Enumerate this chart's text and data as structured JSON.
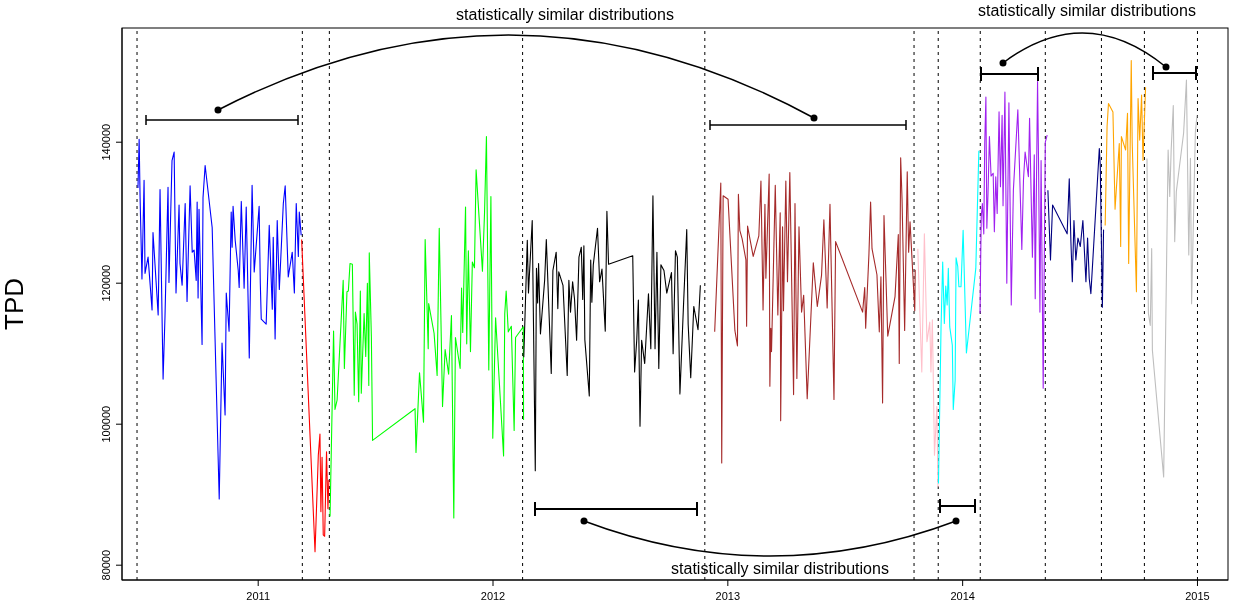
{
  "chart_data": {
    "type": "line",
    "ylabel": "TPD",
    "xlim": [
      2010.42,
      2015.13
    ],
    "xticks": [
      2011,
      2012,
      2013,
      2014,
      2015
    ],
    "ylim": [
      77900,
      156200
    ],
    "yticks": [
      80000,
      100000,
      120000,
      140000
    ],
    "annotations": [
      "statistically similar distributions",
      "statistically similar distributions",
      "statistically similar distributions"
    ],
    "ref_lines": [
      {
        "axis": "x",
        "value": 2010.484,
        "color": "#000000",
        "line_style": "dashed"
      },
      {
        "axis": "x",
        "value": 2011.188,
        "color": "#000000",
        "line_style": "dashed"
      },
      {
        "axis": "x",
        "value": 2011.303,
        "color": "#000000",
        "line_style": "dashed"
      },
      {
        "axis": "x",
        "value": 2012.126,
        "color": "#000000",
        "line_style": "dashed"
      },
      {
        "axis": "x",
        "value": 2012.902,
        "color": "#000000",
        "line_style": "dashed"
      },
      {
        "axis": "x",
        "value": 2013.793,
        "color": "#000000",
        "line_style": "dashed"
      },
      {
        "axis": "x",
        "value": 2013.896,
        "color": "#000000",
        "line_style": "dashed"
      },
      {
        "axis": "x",
        "value": 2014.075,
        "color": "#000000",
        "line_style": "dashed"
      },
      {
        "axis": "x",
        "value": 2014.352,
        "color": "#000000",
        "line_style": "dashed"
      },
      {
        "axis": "x",
        "value": 2014.591,
        "color": "#000000",
        "line_style": "dashed"
      },
      {
        "axis": "x",
        "value": 2014.774,
        "color": "#000000",
        "line_style": "dashed"
      },
      {
        "axis": "x",
        "value": 2015,
        "color": "#000000",
        "line_style": "dashed"
      }
    ],
    "series": [
      {
        "color": "#0000ff",
        "x": [
          2010.488,
          2010.493,
          2010.497,
          2010.505,
          2010.514,
          2010.518,
          2010.531,
          2010.548,
          2010.552,
          2010.574,
          2010.582,
          2010.591,
          2010.595,
          2010.603,
          2010.616,
          2010.62,
          2010.633,
          2010.642,
          2010.65,
          2010.663,
          2010.667,
          2010.676,
          2010.689,
          2010.697,
          2010.71,
          2010.719,
          2010.727,
          2010.736,
          2010.74,
          2010.744,
          2010.748,
          2010.761,
          2010.765,
          2010.774,
          2010.804,
          2010.834,
          2010.846,
          2010.859,
          2010.864,
          2010.876,
          2010.885,
          2010.889,
          2010.893,
          2010.902,
          2010.915,
          2010.919,
          2010.928,
          2010.94,
          2010.949,
          2010.962,
          2010.974,
          2010.983,
          2011.004,
          2011.009,
          2011.013,
          2011.034,
          2011.047,
          2011.06,
          2011.064,
          2011.072,
          2011.081,
          2011.09,
          2011.107,
          2011.115,
          2011.128,
          2011.145,
          2011.154,
          2011.162,
          2011.171,
          2011.175,
          2011.183
        ],
        "values": [
          133500,
          140400,
          132200,
          120600,
          134600,
          121400,
          123700,
          116200,
          127200,
          115500,
          133300,
          114300,
          106400,
          115200,
          133600,
          120100,
          137400,
          138600,
          118600,
          131100,
          122800,
          119700,
          131300,
          117400,
          133800,
          124400,
          124700,
          120400,
          131500,
          117900,
          130500,
          111300,
          132100,
          136700,
          127900,
          89400,
          111500,
          101300,
          118600,
          113200,
          130100,
          125100,
          130900,
          126100,
          121800,
          119400,
          131600,
          119300,
          130800,
          109400,
          133900,
          121600,
          130900,
          120000,
          114900,
          114200,
          128200,
          116300,
          126500,
          112100,
          128900,
          119100,
          131300,
          133800,
          120900,
          124400,
          118600,
          131300,
          123800,
          130100,
          126800
        ]
      },
      {
        "color": "#ff0000",
        "x": [
          2011.185,
          2011.242,
          2011.256,
          2011.263,
          2011.267,
          2011.272,
          2011.277,
          2011.283,
          2011.291,
          2011.297,
          2011.301
        ],
        "values": [
          126200,
          81900,
          95600,
          98600,
          87600,
          95300,
          84300,
          84100,
          96100,
          88000,
          92100
        ]
      },
      {
        "color": "#00ff00",
        "x": [
          2011.306,
          2011.321,
          2011.327,
          2011.336,
          2011.362,
          2011.367,
          2011.378,
          2011.384,
          2011.391,
          2011.401,
          2011.409,
          2011.414,
          2011.421,
          2011.428,
          2011.435,
          2011.439,
          2011.451,
          2011.458,
          2011.465,
          2011.471,
          2011.473,
          2011.482,
          2011.487,
          2011.668,
          2011.672,
          2011.687,
          2011.704,
          2011.711,
          2011.724,
          2011.726,
          2011.749,
          2011.762,
          2011.771,
          2011.785,
          2011.796,
          2011.811,
          2011.823,
          2011.833,
          2011.84,
          2011.86,
          2011.866,
          2011.871,
          2011.883,
          2011.888,
          2011.895,
          2011.904,
          2011.912,
          2011.921,
          2011.928,
          2011.955,
          2011.964,
          2011.972,
          2011.982,
          2011.991,
          2011.999,
          2012.011,
          2012.045,
          2012.05,
          2012.056,
          2012.065,
          2012.078,
          2012.09,
          2012.096,
          2012.109,
          2012.129,
          2012.13
        ],
        "values": [
          86900,
          113200,
          102100,
          103400,
          120400,
          107900,
          118800,
          118900,
          122800,
          122700,
          104100,
          115900,
          114200,
          103200,
          118900,
          104400,
          115700,
          109600,
          120000,
          105500,
          124300,
          112400,
          97700,
          102200,
          96000,
          107300,
          100300,
          126200,
          110700,
          117100,
          112900,
          106900,
          127800,
          102500,
          110600,
          107100,
          115400,
          86700,
          112300,
          107900,
          119300,
          113000,
          130800,
          111400,
          124600,
          110300,
          123000,
          122200,
          136100,
          121700,
          130100,
          140800,
          107700,
          132300,
          98000,
          115100,
          95500,
          115700,
          118900,
          113100,
          113900,
          99100,
          112300,
          112900,
          113800,
          100600
        ]
      },
      {
        "color": "#000000",
        "x": [
          2012.131,
          2012.146,
          2012.151,
          2012.167,
          2012.18,
          2012.185,
          2012.19,
          2012.194,
          2012.202,
          2012.22,
          2012.227,
          2012.248,
          2012.255,
          2012.269,
          2012.276,
          2012.28,
          2012.298,
          2012.316,
          2012.323,
          2012.33,
          2012.339,
          2012.347,
          2012.356,
          2012.366,
          2012.376,
          2012.382,
          2012.387,
          2012.391,
          2012.41,
          2012.416,
          2012.421,
          2012.427,
          2012.445,
          2012.454,
          2012.464,
          2012.478,
          2012.485,
          2012.492,
          2012.595,
          2012.603,
          2012.612,
          2012.619,
          2012.626,
          2012.633,
          2012.646,
          2012.662,
          2012.672,
          2012.681,
          2012.69,
          2012.698,
          2012.706,
          2012.715,
          2012.728,
          2012.74,
          2012.76,
          2012.767,
          2012.777,
          2012.785,
          2012.796,
          2012.811,
          2012.825,
          2012.831,
          2012.842,
          2012.855,
          2012.873,
          2012.883
        ],
        "values": [
          109500,
          126100,
          118600,
          128900,
          93400,
          122100,
          117200,
          122800,
          112800,
          120500,
          126200,
          107200,
          121800,
          124400,
          116400,
          121600,
          119700,
          106900,
          120400,
          115900,
          120200,
          117800,
          111900,
          123700,
          125100,
          117700,
          125300,
          112000,
          104000,
          123300,
          117300,
          122600,
          127800,
          120200,
          122000,
          113200,
          130200,
          122700,
          123900,
          107400,
          111900,
          117600,
          99700,
          111900,
          108600,
          118500,
          110700,
          132400,
          110700,
          124400,
          107900,
          122600,
          121800,
          118600,
          121500,
          110000,
          124600,
          123700,
          104300,
          116700,
          127600,
          114200,
          106600,
          116700,
          113400,
          119700
        ]
      },
      {
        "color": "#a52a2a",
        "x": [
          2012.944,
          2012.97,
          2012.974,
          2012.98,
          2013.001,
          2013.03,
          2013.041,
          2013.045,
          2013.051,
          2013.061,
          2013.077,
          2013.08,
          2013.084,
          2013.108,
          2013.132,
          2013.141,
          2013.15,
          2013.158,
          2013.162,
          2013.176,
          2013.179,
          2013.183,
          2013.186,
          2013.202,
          2013.213,
          2013.223,
          2013.225,
          2013.233,
          2013.237,
          2013.247,
          2013.254,
          2013.264,
          2013.28,
          2013.286,
          2013.294,
          2013.303,
          2013.314,
          2013.323,
          2013.338,
          2013.364,
          2013.381,
          2013.399,
          2013.409,
          2013.423,
          2013.435,
          2013.438,
          2013.452,
          2013.459,
          2013.574,
          2013.583,
          2013.587,
          2013.601,
          2013.608,
          2013.614,
          2013.635,
          2013.645,
          2013.652,
          2013.659,
          2013.665,
          2013.681,
          2013.712,
          2013.726,
          2013.73,
          2013.736,
          2013.742,
          2013.753,
          2013.764,
          2013.77,
          2013.776,
          2013.796,
          2013.798
        ],
        "values": [
          113100,
          134200,
          94500,
          132400,
          131900,
          113300,
          111100,
          132600,
          127500,
          126300,
          123300,
          113900,
          128100,
          123800,
          126700,
          134500,
          116200,
          131200,
          120700,
          135500,
          105400,
          113600,
          110300,
          133900,
          115500,
          130000,
          100500,
          128000,
          116100,
          134500,
          120200,
          135700,
          104200,
          131300,
          106500,
          128000,
          115900,
          118300,
          103600,
          122900,
          116700,
          121100,
          129000,
          116500,
          131200,
          126100,
          103500,
          125900,
          115900,
          119400,
          113600,
          124200,
          131500,
          124900,
          121200,
          113100,
          120900,
          103000,
          129600,
          112500,
          118100,
          126900,
          108600,
          137800,
          131800,
          113300,
          135800,
          124400,
          128700,
          116100,
          121900
        ]
      },
      {
        "color": "#ffc0cb",
        "x": [
          2013.809,
          2013.826,
          2013.837,
          2013.848,
          2013.86,
          2013.865,
          2013.871,
          2013.88,
          2013.89,
          2013.895
        ],
        "values": [
          124900,
          107400,
          127000,
          111700,
          114500,
          107400,
          114800,
          95600,
          102500,
          91100
        ]
      },
      {
        "color": "#00ffff",
        "x": [
          2013.897,
          2013.908,
          2013.915,
          2013.922,
          2013.928,
          2013.934,
          2013.939,
          2013.945,
          2013.956,
          2013.96,
          2013.968,
          2013.972,
          2013.979,
          2013.984,
          2013.993,
          2014.002,
          2014.016,
          2014.056,
          2014.069
        ],
        "values": [
          91600,
          113800,
          123000,
          114300,
          119600,
          116900,
          122100,
          113800,
          111200,
          102100,
          106200,
          123600,
          122400,
          119500,
          119500,
          127500,
          110100,
          122100,
          138800
        ]
      },
      {
        "color": "#a020f0",
        "x": [
          2014.074,
          2014.079,
          2014.084,
          2014.09,
          2014.094,
          2014.099,
          2014.103,
          2014.108,
          2014.114,
          2014.121,
          2014.13,
          2014.135,
          2014.141,
          2014.147,
          2014.155,
          2014.161,
          2014.168,
          2014.172,
          2014.18,
          2014.188,
          2014.197,
          2014.207,
          2014.216,
          2014.235,
          2014.252,
          2014.259,
          2014.266,
          2014.28,
          2014.285,
          2014.297,
          2014.305,
          2014.309,
          2014.319,
          2014.323,
          2014.329,
          2014.334,
          2014.343,
          2014.352,
          2014.36
        ],
        "values": [
          115700,
          129400,
          131300,
          127000,
          139800,
          146400,
          127800,
          132700,
          140800,
          135200,
          135600,
          127300,
          135100,
          129900,
          144300,
          133700,
          143800,
          131000,
          147100,
          120000,
          145600,
          116900,
          133200,
          144600,
          124800,
          134600,
          138600,
          135100,
          143400,
          123700,
          138200,
          117800,
          148600,
          137800,
          115900,
          137400,
          105100,
          140000,
          141000
        ]
      },
      {
        "color": "#000080",
        "x": [
          2014.363,
          2014.374,
          2014.383,
          2014.445,
          2014.454,
          2014.461,
          2014.467,
          2014.474,
          2014.482,
          2014.491,
          2014.501,
          2014.512,
          2014.525,
          2014.532,
          2014.539,
          2014.546,
          2014.582,
          2014.586,
          2014.595,
          2014.6
        ],
        "values": [
          133200,
          123300,
          131100,
          127000,
          134800,
          125900,
          120200,
          128900,
          123300,
          126400,
          125200,
          128900,
          120200,
          126400,
          120700,
          118500,
          139100,
          136700,
          116600,
          127600
        ]
      },
      {
        "color": "#ffa500",
        "x": [
          2014.607,
          2014.615,
          2014.621,
          2014.64,
          2014.649,
          2014.667,
          2014.673,
          2014.676,
          2014.694,
          2014.702,
          2014.707,
          2014.718,
          2014.722,
          2014.74,
          2014.747,
          2014.754,
          2014.762,
          2014.768,
          2014.779
        ],
        "values": [
          128200,
          142200,
          145500,
          144300,
          130500,
          139800,
          125200,
          140800,
          138900,
          144100,
          122800,
          151600,
          140000,
          118800,
          146200,
          140300,
          146700,
          137400,
          147800
        ]
      },
      {
        "color": "#bebebe",
        "x": [
          2014.785,
          2014.791,
          2014.799,
          2014.805,
          2014.808,
          2014.856,
          2014.875,
          2014.882,
          2014.888,
          2014.897,
          2014.903,
          2014.91,
          2014.941,
          2014.953,
          2014.963,
          2014.97,
          2014.975,
          2014.991,
          2014.998
        ],
        "values": [
          137700,
          115700,
          114000,
          124900,
          110500,
          92500,
          138900,
          132300,
          138900,
          145200,
          125900,
          133000,
          141300,
          148800,
          124000,
          137700,
          117100,
          141400,
          143800
        ]
      }
    ]
  }
}
